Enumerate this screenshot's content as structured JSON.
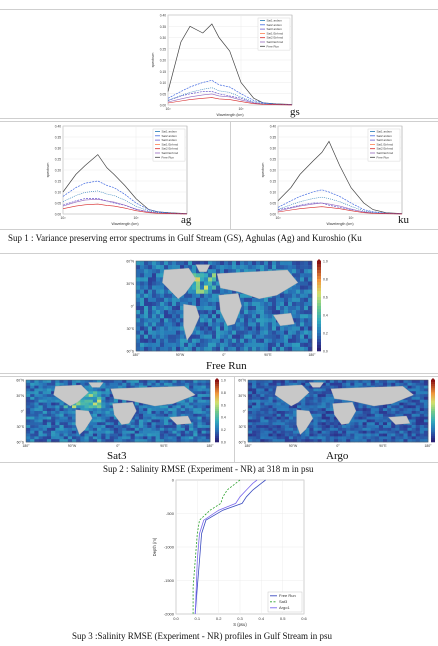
{
  "spectrum_common": {
    "xlabel": "Wavelength (km)",
    "ylabel": "spectrum",
    "x_ticks": [
      "10²",
      "10³"
    ],
    "y_ticks": [
      "0.00",
      "0.05",
      "0.10",
      "0.15",
      "0.20",
      "0.25",
      "0.30",
      "0.35",
      "0.40"
    ],
    "legend": [
      "Sat1 ardsm",
      "Sat2 ardsm",
      "Sat3 ardsm",
      "Sat1 Enhmd",
      "Sat2 Enhmd",
      "Sat3 Enhmd",
      "Free Run"
    ]
  },
  "spectra": [
    {
      "label": "gs"
    },
    {
      "label": "ag"
    },
    {
      "label": "ku"
    }
  ],
  "sup1_caption": "Sup 1 : Variance preserving error spectrums in Gulf Stream (GS), Aghulas (Ag) and Kuroshio (Ku",
  "maps": {
    "lat_ticks": [
      "60°N",
      "30°N",
      "0°",
      "30°S",
      "60°S"
    ],
    "lon_ticks": [
      "180°",
      "90°W",
      "0°",
      "90°E",
      "180°"
    ],
    "colorbar_ticks": [
      "0.0",
      "0.2",
      "0.4",
      "0.6",
      "0.8",
      "1.0"
    ],
    "panels": [
      {
        "label": "Free Run"
      },
      {
        "label": "Sat3"
      },
      {
        "label": "Argo"
      }
    ]
  },
  "sup2_caption": "Sup 2 : Salinity RMSE (Experiment - NR) at 318 m in psu",
  "profile": {
    "xlabel": "S (psu)",
    "ylabel": "Depth (m)",
    "x_ticks": [
      "0.0",
      "0.1",
      "0.2",
      "0.3",
      "0.4",
      "0.5",
      "0.6"
    ],
    "y_ticks": [
      "0",
      "-500",
      "-1000",
      "-1500",
      "-2000"
    ],
    "legend": [
      "Free Run",
      "Sat3",
      "Argo1"
    ],
    "colors": [
      "#3b4cc0",
      "#2ca02c",
      "#7b68ee"
    ]
  },
  "sup3_caption": "Sup 3 :Salinity RMSE (Experiment - NR) profiles in Gulf Stream in psu",
  "chart_data": [
    {
      "type": "line",
      "xscale": "log",
      "x": [
        100,
        150,
        200,
        300,
        400,
        500,
        700,
        1000,
        1500,
        2000,
        3000,
        5000
      ],
      "series": [
        {
          "name": "Free Run",
          "values": [
            0.06,
            0.28,
            0.35,
            0.32,
            0.36,
            0.3,
            0.24,
            0.1,
            0.03,
            0.01,
            0.005,
            0.002
          ]
        },
        {
          "name": "Sat1 ardsm",
          "values": [
            0.03,
            0.06,
            0.08,
            0.1,
            0.11,
            0.09,
            0.08,
            0.05,
            0.02,
            0.01,
            0.004,
            0.002
          ]
        },
        {
          "name": "Sat3 Enhmd",
          "values": [
            0.02,
            0.04,
            0.05,
            0.06,
            0.06,
            0.05,
            0.04,
            0.03,
            0.01,
            0.005,
            0.002,
            0.001
          ]
        }
      ]
    },
    {
      "type": "line",
      "xscale": "log",
      "x": [
        100,
        150,
        200,
        300,
        400,
        500,
        700,
        1000,
        1500,
        2000,
        3000,
        5000
      ],
      "series": [
        {
          "name": "Free Run",
          "values": [
            0.1,
            0.18,
            0.22,
            0.27,
            0.21,
            0.18,
            0.13,
            0.07,
            0.02,
            0.01,
            0.005,
            0.002
          ]
        },
        {
          "name": "Sat1 ardsm",
          "values": [
            0.08,
            0.12,
            0.14,
            0.15,
            0.13,
            0.12,
            0.09,
            0.05,
            0.02,
            0.01,
            0.004,
            0.002
          ]
        },
        {
          "name": "Sat3 Enhmd",
          "values": [
            0.04,
            0.06,
            0.07,
            0.07,
            0.06,
            0.05,
            0.04,
            0.02,
            0.01,
            0.005,
            0.002,
            0.001
          ]
        }
      ]
    },
    {
      "type": "line",
      "xscale": "log",
      "x": [
        100,
        150,
        200,
        300,
        400,
        500,
        700,
        1000,
        1500,
        2000,
        3000,
        5000
      ],
      "series": [
        {
          "name": "Free Run",
          "values": [
            0.06,
            0.12,
            0.18,
            0.24,
            0.28,
            0.33,
            0.22,
            0.12,
            0.05,
            0.02,
            0.006,
            0.002
          ]
        },
        {
          "name": "Sat1 ardsm",
          "values": [
            0.03,
            0.06,
            0.08,
            0.1,
            0.11,
            0.1,
            0.08,
            0.05,
            0.02,
            0.01,
            0.004,
            0.002
          ]
        },
        {
          "name": "Sat3 Enhmd",
          "values": [
            0.02,
            0.03,
            0.04,
            0.05,
            0.05,
            0.04,
            0.03,
            0.02,
            0.01,
            0.005,
            0.002,
            0.001
          ]
        }
      ]
    },
    {
      "type": "line",
      "x_range": [
        0,
        0.6
      ],
      "y_range": [
        -2000,
        0
      ],
      "series": [
        {
          "name": "Free Run",
          "points": [
            [
              0.42,
              0
            ],
            [
              0.4,
              -50
            ],
            [
              0.36,
              -150
            ],
            [
              0.33,
              -250
            ],
            [
              0.31,
              -350
            ],
            [
              0.22,
              -450
            ],
            [
              0.14,
              -600
            ],
            [
              0.12,
              -800
            ],
            [
              0.11,
              -1200
            ],
            [
              0.1,
              -1600
            ],
            [
              0.09,
              -2000
            ]
          ]
        },
        {
          "name": "Sat3",
          "points": [
            [
              0.3,
              0
            ],
            [
              0.28,
              -50
            ],
            [
              0.24,
              -150
            ],
            [
              0.22,
              -250
            ],
            [
              0.21,
              -350
            ],
            [
              0.16,
              -450
            ],
            [
              0.11,
              -600
            ],
            [
              0.1,
              -800
            ],
            [
              0.09,
              -1200
            ],
            [
              0.08,
              -1600
            ],
            [
              0.08,
              -2000
            ]
          ]
        },
        {
          "name": "Argo1",
          "points": [
            [
              0.38,
              0
            ],
            [
              0.36,
              -50
            ],
            [
              0.33,
              -150
            ],
            [
              0.3,
              -250
            ],
            [
              0.28,
              -350
            ],
            [
              0.2,
              -450
            ],
            [
              0.13,
              -600
            ],
            [
              0.11,
              -800
            ],
            [
              0.1,
              -1200
            ],
            [
              0.095,
              -1600
            ],
            [
              0.09,
              -2000
            ]
          ]
        }
      ]
    }
  ]
}
